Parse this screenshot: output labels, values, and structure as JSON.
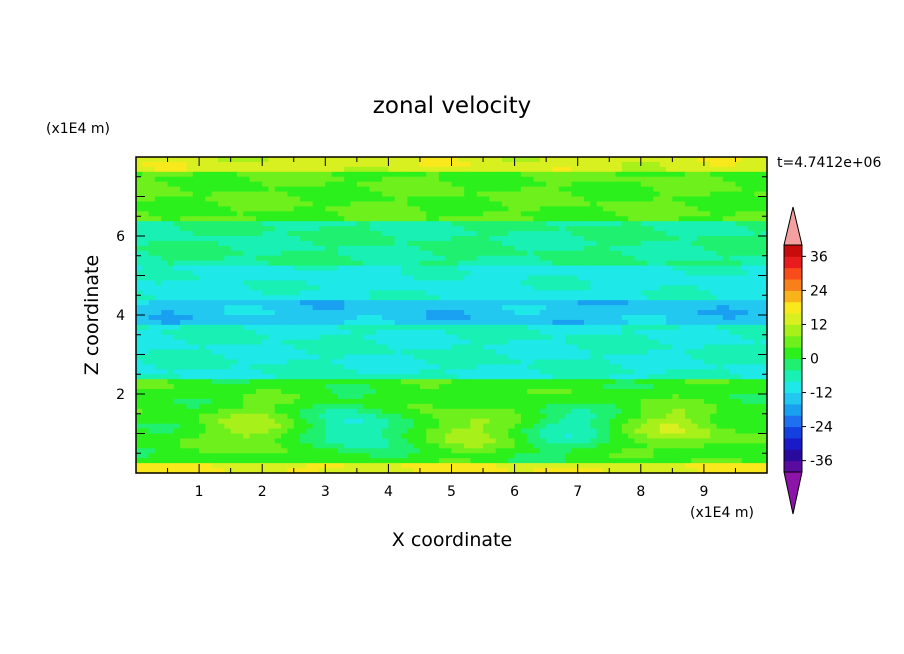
{
  "chart_data": {
    "type": "heatmap",
    "title": "zonal velocity",
    "xlabel": "X coordinate",
    "ylabel": "Z coordinate",
    "x_unit_label": "(x1E4 m)",
    "y_unit_label": "(x1E4 m)",
    "time_label": "t=4.7412e+06",
    "xlim": [
      0,
      10
    ],
    "ylim": [
      0,
      8
    ],
    "x_ticks": [
      1,
      2,
      3,
      4,
      5,
      6,
      7,
      8,
      9
    ],
    "y_ticks": [
      2,
      4,
      6
    ],
    "colorbar": {
      "label_values": [
        36,
        24,
        12,
        0,
        -12,
        -24,
        -36
      ],
      "levels": [
        -40,
        -36,
        -32,
        -28,
        -24,
        -20,
        -16,
        -12,
        -8,
        -4,
        0,
        4,
        8,
        12,
        16,
        20,
        24,
        28,
        32,
        36,
        40
      ],
      "colors_low_to_high": [
        "#5a0ca0",
        "#2a0a9c",
        "#1a1ac8",
        "#1440e0",
        "#1e70f0",
        "#1aa0f0",
        "#22c8f0",
        "#1ee8e8",
        "#18f0b4",
        "#20f070",
        "#2cf01c",
        "#6ef01c",
        "#a8f01a",
        "#d8f020",
        "#f8e81c",
        "#f8b41a",
        "#f8801a",
        "#f84c1c",
        "#e81c1c",
        "#c80c0c"
      ],
      "extend_low_color": "#8c14a8",
      "extend_high_color": "#f4a0a0"
    },
    "field_description": {
      "bands_by_z": [
        {
          "z": [
            0.0,
            0.2
          ],
          "value": 16
        },
        {
          "z": [
            0.2,
            2.0
          ],
          "value": 2,
          "wave_cells": [
            {
              "x": 1.9,
              "value": 10
            },
            {
              "x": 3.5,
              "value": -10
            },
            {
              "x": 5.2,
              "value": 10
            },
            {
              "x": 6.9,
              "value": -6
            },
            {
              "x": 8.6,
              "value": 12
            }
          ]
        },
        {
          "z": [
            2.0,
            2.4
          ],
          "value": 2
        },
        {
          "z": [
            2.4,
            3.8
          ],
          "value": -8
        },
        {
          "z": [
            3.8,
            4.4
          ],
          "value": -14
        },
        {
          "z": [
            4.4,
            5.2
          ],
          "value": -9
        },
        {
          "z": [
            5.2,
            6.4
          ],
          "value": -4
        },
        {
          "z": [
            6.4,
            7.6
          ],
          "value": 4
        },
        {
          "z": [
            7.6,
            8.0
          ],
          "value": 14
        }
      ]
    }
  }
}
